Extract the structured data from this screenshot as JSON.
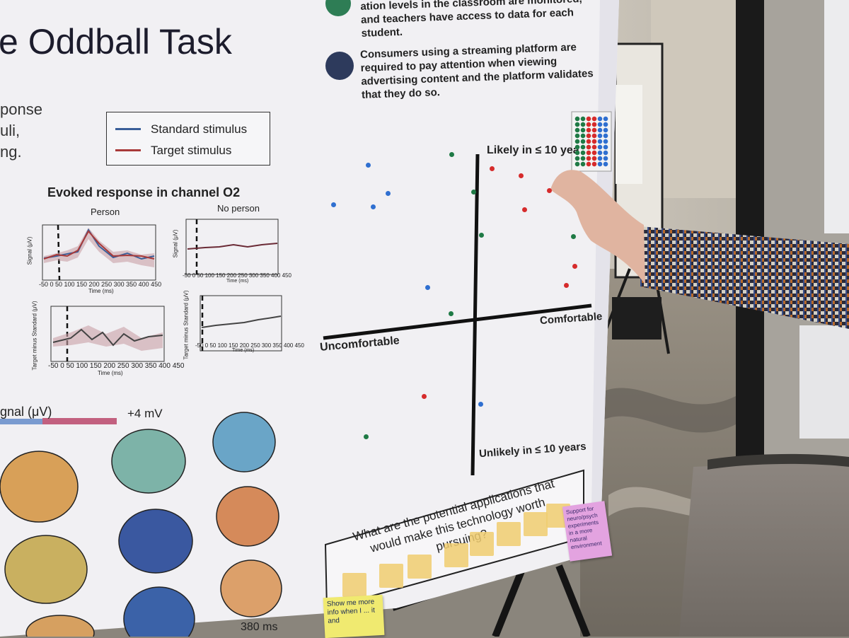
{
  "poster": {
    "title_fragment": "e Oddball Task",
    "intro_fragment": [
      "ponse",
      "uli,",
      "ng."
    ],
    "legend": {
      "standard": "Standard stimulus",
      "target": "Target stimulus"
    },
    "evoked": {
      "title": "Evoked response in channel O2",
      "panel_person": "Person",
      "panel_no_person": "No person",
      "y_label_top": "Signal (μV)",
      "y_label_bottom": "Target minus Standard (μV)",
      "x_label": "Time (ms)",
      "x_ticks": "-50 0 50 100 150 200 250 300 350 400 450"
    },
    "signal_scale": {
      "label": "gnal (μV)",
      "max": "+4 mV",
      "time": "380 ms"
    },
    "bullets": [
      "ation levels in the classroom are monitored, and teachers have access to data for each student.",
      "Consumers using a streaming platform are required to pay attention when viewing advertising content and the platform validates that they do so."
    ],
    "quadrant": {
      "top": "Likely in ≤ 10 yea",
      "bottom": "Unlikely in ≤ 10 years",
      "left": "Uncomfortable",
      "right": "Comfortable"
    },
    "question": "What are the potential applications that would make this technology worth pursuing?",
    "sticky_notes": {
      "pink": "Support for neuro/psych experiments in a more natural environment",
      "yellow": "Show me more info when I ... it and"
    }
  },
  "colors": {
    "standard_line": "#3a5f99",
    "target_line": "#a83a3a",
    "dot_blue": "#2f6fd0",
    "dot_green": "#1f7a45",
    "dot_red": "#d62b2b",
    "bullet_green": "#2e7d55",
    "bullet_navy": "#2d3a5c",
    "pink_note": "#e3a3e0",
    "yellow_note": "#f0ea70"
  }
}
